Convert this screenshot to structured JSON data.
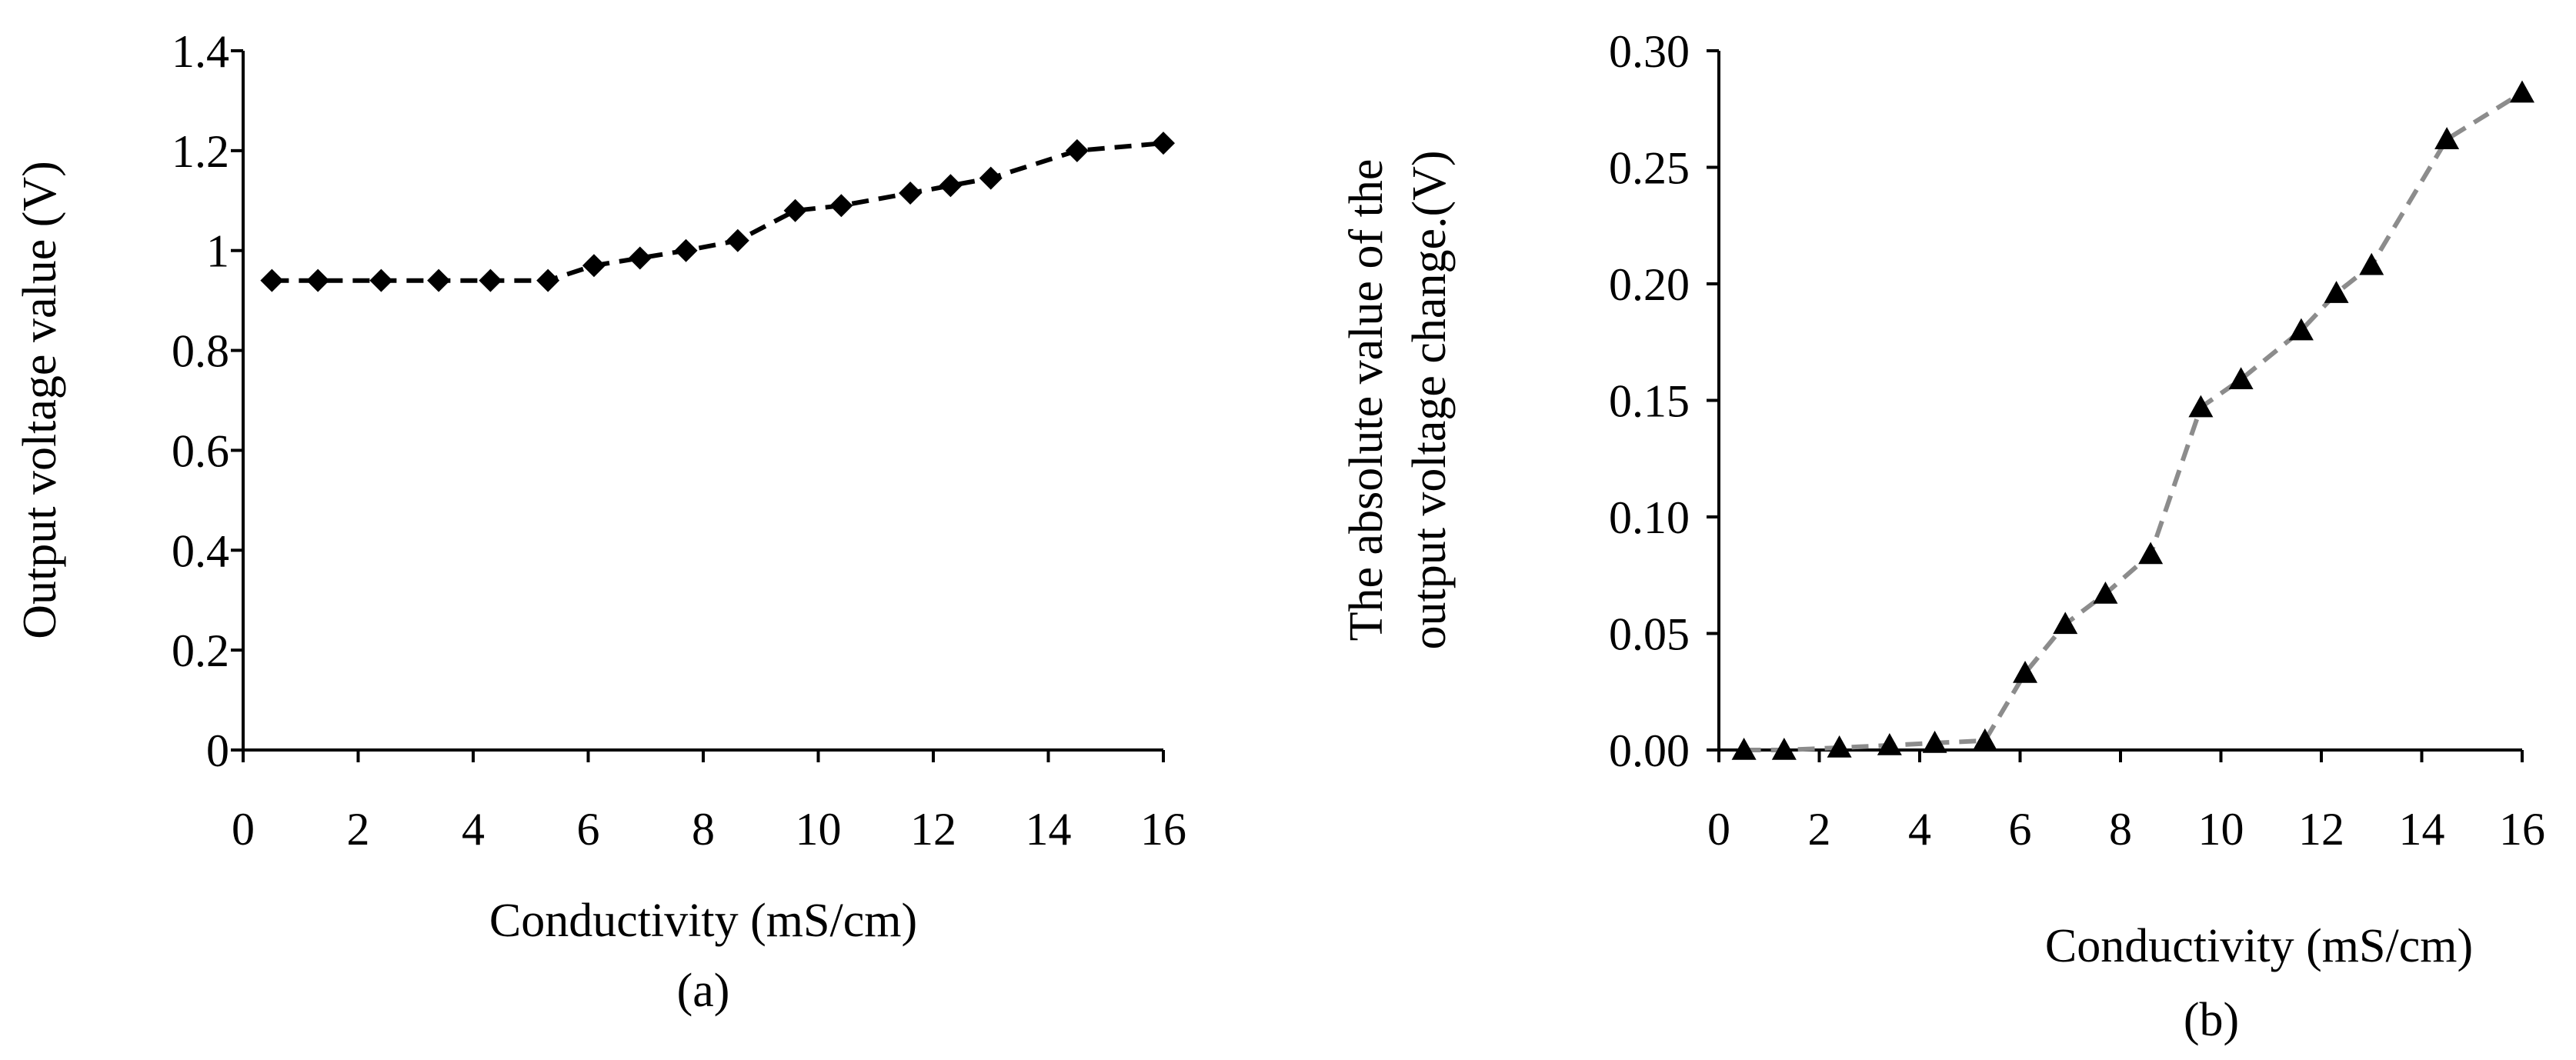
{
  "chart_data": [
    {
      "type": "line",
      "panel_label": "(a)",
      "title": "",
      "xlabel": "Conductivity (mS/cm)",
      "ylabel": "Output voltage value (V)",
      "xlim": [
        0,
        16
      ],
      "ylim": [
        0,
        1.4
      ],
      "x_ticks": [
        "0",
        "2",
        "4",
        "6",
        "8",
        "10",
        "12",
        "14",
        "16"
      ],
      "y_ticks": [
        "0",
        "0.2",
        "0.4",
        "0.6",
        "0.8",
        "1",
        "1.2",
        "1.4"
      ],
      "grid": false,
      "series": [
        {
          "name": "Output voltage",
          "marker": "diamond",
          "line_style": "dashed",
          "color": "#000000",
          "x": [
            0.5,
            1.3,
            2.4,
            3.4,
            4.3,
            5.3,
            6.1,
            6.9,
            7.7,
            8.6,
            9.6,
            10.4,
            11.6,
            12.3,
            13.0,
            14.5,
            16.0
          ],
          "y": [
            0.94,
            0.94,
            0.94,
            0.94,
            0.94,
            0.94,
            0.97,
            0.985,
            1.0,
            1.02,
            1.08,
            1.09,
            1.115,
            1.13,
            1.145,
            1.2,
            1.215
          ]
        }
      ]
    },
    {
      "type": "line",
      "panel_label": "(b)",
      "title": "",
      "xlabel": "Conductivity (mS/cm)",
      "ylabel_lines": [
        "The absolute value of the",
        "output voltage change.(V)"
      ],
      "xlim": [
        0,
        16
      ],
      "ylim": [
        0,
        0.3
      ],
      "x_ticks": [
        "0",
        "2",
        "4",
        "6",
        "8",
        "10",
        "12",
        "14",
        "16"
      ],
      "y_ticks": [
        "0.00",
        "0.05",
        "0.10",
        "0.15",
        "0.20",
        "0.25",
        "0.30"
      ],
      "grid": false,
      "series": [
        {
          "name": "Absolute output voltage change",
          "marker": "triangle",
          "line_style": "dashed",
          "color": "#8c8c8c",
          "marker_color": "#000000",
          "x": [
            0.5,
            1.3,
            2.4,
            3.4,
            4.3,
            5.3,
            6.1,
            6.9,
            7.7,
            8.6,
            9.6,
            10.4,
            11.6,
            12.3,
            13.0,
            14.5,
            16.0
          ],
          "y": [
            0.0,
            0.0,
            0.001,
            0.002,
            0.003,
            0.004,
            0.033,
            0.054,
            0.067,
            0.084,
            0.147,
            0.159,
            0.18,
            0.196,
            0.208,
            0.262,
            0.282
          ]
        }
      ]
    }
  ]
}
